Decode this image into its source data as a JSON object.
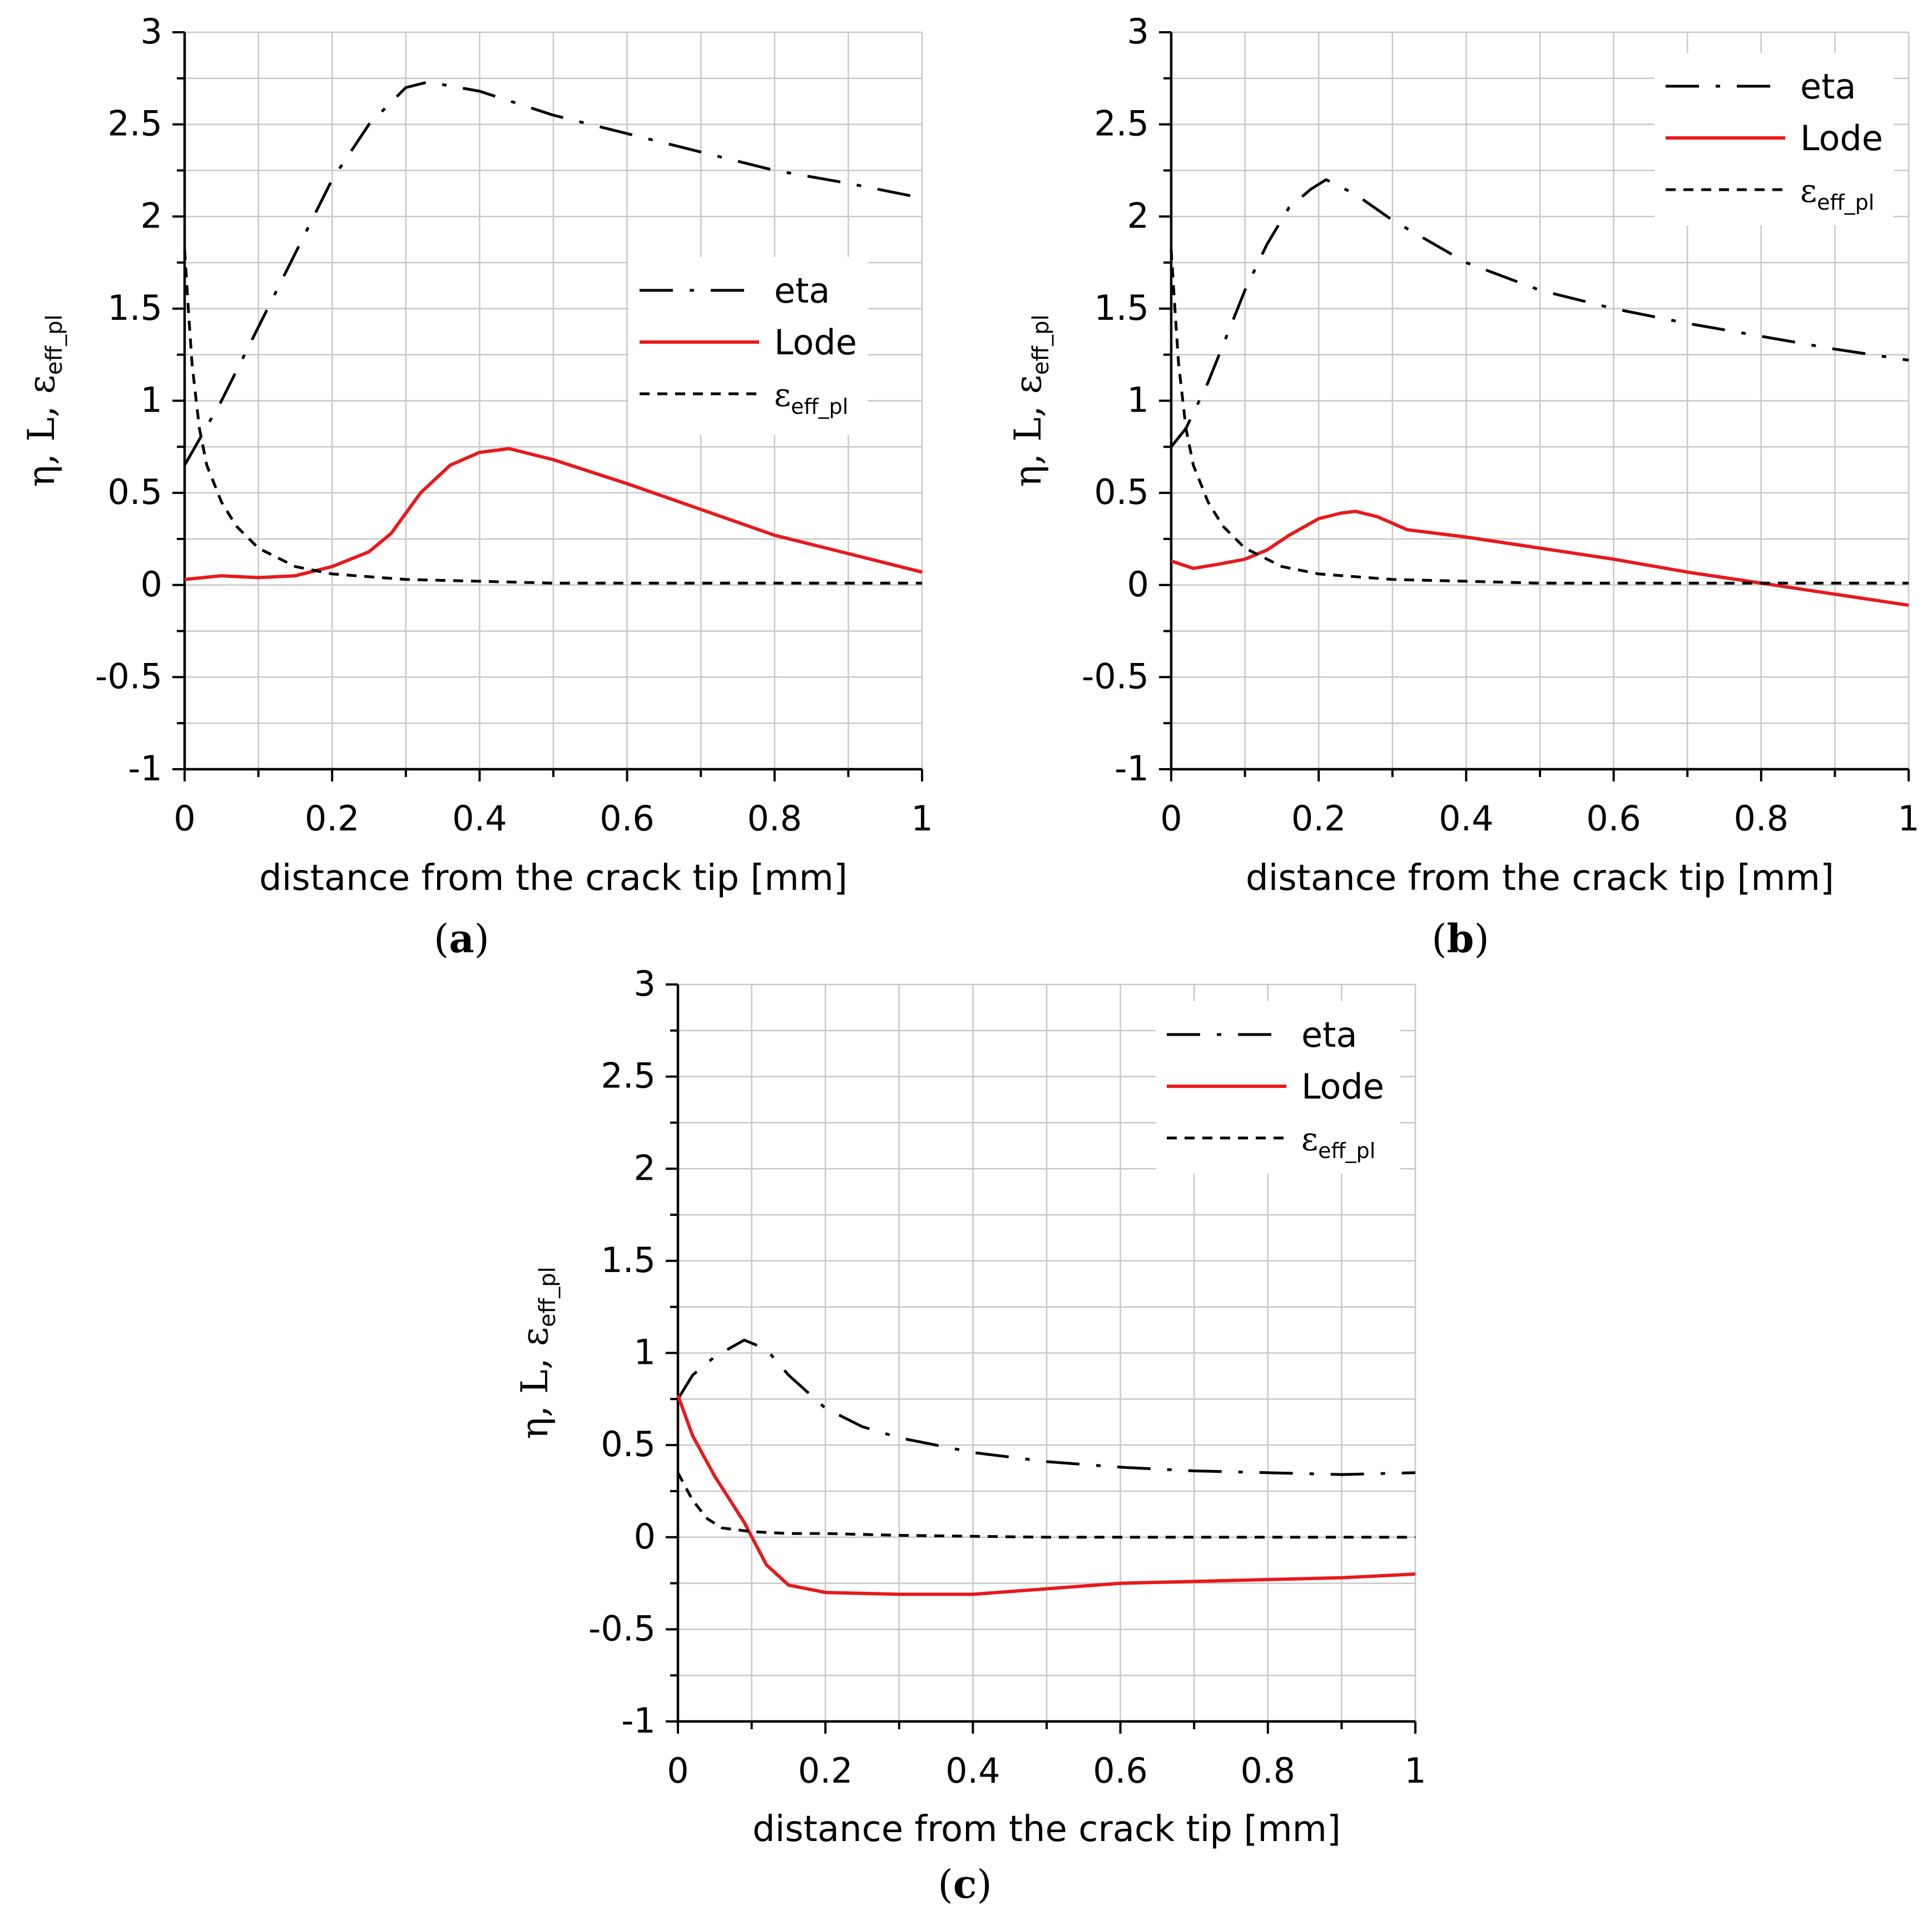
{
  "figure": {
    "x_label": "distance from the crack tip [mm]",
    "y_label_main": "η, L, ε",
    "y_label_sub": "eff_pl",
    "legend": {
      "eta": "eta",
      "lode": "Lode",
      "eps_main": "ε",
      "eps_sub": "eff_pl"
    },
    "colors": {
      "eta": "#000000",
      "lode": "#e8191c",
      "eps": "#000000",
      "grid": "#c8c8c8"
    }
  },
  "chart_data": [
    {
      "id": "a",
      "type": "line",
      "panel_label": {
        "open": "(",
        "letter": "a",
        "close": ")"
      },
      "xlabel": "distance from the crack tip [mm]",
      "ylabel": "η, L, ε_eff_pl",
      "xlim": [
        0,
        1
      ],
      "ylim": [
        -1,
        3
      ],
      "x_ticks": [
        "0",
        "0.2",
        "0.4",
        "0.6",
        "0.8",
        "1"
      ],
      "y_ticks": [
        "-1",
        "-0.5",
        "0",
        "0.5",
        "1",
        "1.5",
        "2",
        "2.5",
        "3"
      ],
      "grid": true,
      "legend_position": "center-right",
      "series": [
        {
          "name": "eta",
          "style": "dash-dot",
          "x": [
            0,
            0.05,
            0.1,
            0.15,
            0.2,
            0.25,
            0.3,
            0.33,
            0.4,
            0.5,
            0.6,
            0.7,
            0.8,
            0.9,
            1.0
          ],
          "y": [
            0.65,
            1.0,
            1.4,
            1.8,
            2.2,
            2.5,
            2.7,
            2.73,
            2.68,
            2.55,
            2.45,
            2.35,
            2.25,
            2.18,
            2.1
          ]
        },
        {
          "name": "Lode",
          "style": "solid",
          "x": [
            0,
            0.05,
            0.1,
            0.15,
            0.2,
            0.25,
            0.28,
            0.32,
            0.36,
            0.4,
            0.44,
            0.5,
            0.6,
            0.7,
            0.8,
            0.9,
            1.0
          ],
          "y": [
            0.03,
            0.05,
            0.04,
            0.05,
            0.1,
            0.18,
            0.28,
            0.5,
            0.65,
            0.72,
            0.74,
            0.68,
            0.55,
            0.41,
            0.27,
            0.17,
            0.07
          ]
        },
        {
          "name": "ε_eff_pl",
          "style": "dashed",
          "x": [
            0,
            0.005,
            0.01,
            0.02,
            0.03,
            0.05,
            0.07,
            0.1,
            0.15,
            0.2,
            0.3,
            0.5,
            0.7,
            1.0
          ],
          "y": [
            1.82,
            1.5,
            1.2,
            0.85,
            0.65,
            0.45,
            0.32,
            0.2,
            0.1,
            0.06,
            0.03,
            0.01,
            0.01,
            0.01
          ]
        }
      ]
    },
    {
      "id": "b",
      "type": "line",
      "panel_label": {
        "open": "(",
        "letter": "b",
        "close": ")"
      },
      "xlabel": "distance from the crack tip [mm]",
      "ylabel": "η, L, ε_eff_pl",
      "xlim": [
        0,
        1
      ],
      "ylim": [
        -1,
        3
      ],
      "x_ticks": [
        "0",
        "0.2",
        "0.4",
        "0.6",
        "0.8",
        "1"
      ],
      "y_ticks": [
        "-1",
        "-0.5",
        "0",
        "0.5",
        "1",
        "1.5",
        "2",
        "2.5",
        "3"
      ],
      "grid": true,
      "legend_position": "top-right",
      "series": [
        {
          "name": "eta",
          "style": "dash-dot",
          "x": [
            0,
            0.02,
            0.05,
            0.08,
            0.1,
            0.13,
            0.16,
            0.19,
            0.21,
            0.25,
            0.3,
            0.4,
            0.5,
            0.6,
            0.7,
            0.8,
            0.9,
            1.0
          ],
          "y": [
            0.75,
            0.85,
            1.1,
            1.4,
            1.6,
            1.85,
            2.05,
            2.15,
            2.2,
            2.12,
            1.98,
            1.75,
            1.6,
            1.5,
            1.42,
            1.35,
            1.28,
            1.22
          ]
        },
        {
          "name": "Lode",
          "style": "solid",
          "x": [
            0,
            0.03,
            0.06,
            0.1,
            0.13,
            0.16,
            0.2,
            0.23,
            0.25,
            0.28,
            0.32,
            0.4,
            0.5,
            0.6,
            0.7,
            0.8,
            0.9,
            1.0
          ],
          "y": [
            0.13,
            0.09,
            0.11,
            0.14,
            0.19,
            0.27,
            0.36,
            0.39,
            0.4,
            0.37,
            0.3,
            0.26,
            0.2,
            0.14,
            0.07,
            0.01,
            -0.05,
            -0.11
          ]
        },
        {
          "name": "ε_eff_pl",
          "style": "dashed",
          "x": [
            0,
            0.005,
            0.01,
            0.02,
            0.03,
            0.05,
            0.07,
            0.1,
            0.15,
            0.2,
            0.3,
            0.5,
            0.7,
            1.0
          ],
          "y": [
            1.82,
            1.5,
            1.2,
            0.85,
            0.65,
            0.45,
            0.32,
            0.2,
            0.1,
            0.06,
            0.03,
            0.01,
            0.01,
            0.01
          ]
        }
      ]
    },
    {
      "id": "c",
      "type": "line",
      "panel_label": {
        "open": "(",
        "letter": "c",
        "close": ")"
      },
      "xlabel": "distance from the crack tip [mm]",
      "ylabel": "η, L, ε_eff_pl",
      "xlim": [
        0,
        1
      ],
      "ylim": [
        -1,
        3
      ],
      "x_ticks": [
        "0",
        "0.2",
        "0.4",
        "0.6",
        "0.8",
        "1"
      ],
      "y_ticks": [
        "-1",
        "-0.5",
        "0",
        "0.5",
        "1",
        "1.5",
        "2",
        "2.5",
        "3"
      ],
      "grid": true,
      "legend_position": "top-right",
      "series": [
        {
          "name": "eta",
          "style": "dash-dot",
          "x": [
            0,
            0.02,
            0.05,
            0.09,
            0.12,
            0.15,
            0.2,
            0.25,
            0.3,
            0.4,
            0.5,
            0.6,
            0.7,
            0.8,
            0.9,
            1.0
          ],
          "y": [
            0.75,
            0.88,
            0.98,
            1.07,
            1.02,
            0.88,
            0.7,
            0.6,
            0.54,
            0.46,
            0.41,
            0.38,
            0.36,
            0.35,
            0.34,
            0.35
          ]
        },
        {
          "name": "Lode",
          "style": "solid",
          "x": [
            0,
            0.02,
            0.05,
            0.09,
            0.12,
            0.15,
            0.2,
            0.3,
            0.4,
            0.5,
            0.6,
            0.7,
            0.8,
            0.9,
            1.0
          ],
          "y": [
            0.77,
            0.55,
            0.33,
            0.08,
            -0.15,
            -0.26,
            -0.3,
            -0.31,
            -0.31,
            -0.28,
            -0.25,
            -0.24,
            -0.23,
            -0.22,
            -0.2
          ]
        },
        {
          "name": "ε_eff_pl",
          "style": "dashed",
          "x": [
            0,
            0.02,
            0.04,
            0.06,
            0.08,
            0.1,
            0.15,
            0.2,
            0.3,
            0.5,
            0.7,
            1.0
          ],
          "y": [
            0.35,
            0.2,
            0.1,
            0.05,
            0.04,
            0.03,
            0.02,
            0.02,
            0.01,
            0.0,
            0.0,
            0.0
          ]
        }
      ]
    }
  ]
}
